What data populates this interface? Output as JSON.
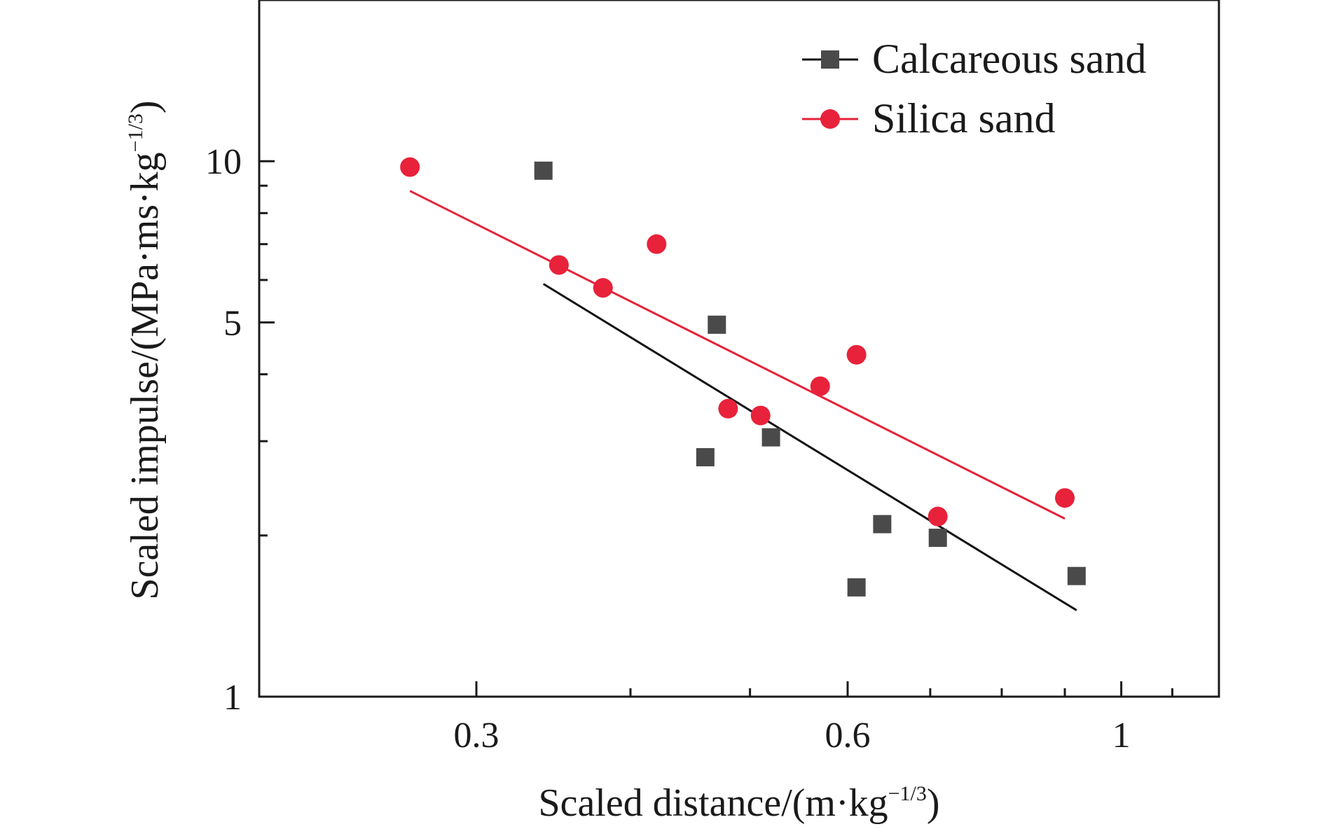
{
  "chart_data": {
    "type": "scatter",
    "x_scale": "log",
    "y_scale": "log",
    "xlim": [
      0.2,
      1.2
    ],
    "ylim": [
      1,
      20
    ],
    "x_ticks": [
      {
        "value": 0.3,
        "label": "0.3"
      },
      {
        "value": 0.6,
        "label": "0.6"
      },
      {
        "value": 1,
        "label": "1"
      }
    ],
    "y_ticks": [
      {
        "value": 1,
        "label": "1"
      },
      {
        "value": 5,
        "label": "5"
      },
      {
        "value": 10,
        "label": "10"
      }
    ],
    "xlabel": "Scaled distance/(m·kg",
    "xlabel_sup": "−1/3",
    "xlabel_end": ")",
    "ylabel": "Scaled impulse/(MPa·ms·kg",
    "ylabel_sup": "−1/3",
    "ylabel_end": ")",
    "legend_position": "top-right",
    "grid": false,
    "series": [
      {
        "name": "Calcareous sand",
        "marker": "square",
        "color": "#4a4a4a",
        "line_color": "#111111",
        "points": [
          {
            "x": 0.34,
            "y": 9.6
          },
          {
            "x": 0.46,
            "y": 2.8
          },
          {
            "x": 0.47,
            "y": 4.95
          },
          {
            "x": 0.52,
            "y": 3.05
          },
          {
            "x": 0.61,
            "y": 1.6
          },
          {
            "x": 0.64,
            "y": 2.1
          },
          {
            "x": 0.71,
            "y": 1.98
          },
          {
            "x": 0.92,
            "y": 1.68
          }
        ],
        "fit": {
          "x": [
            0.34,
            0.92
          ],
          "y": [
            5.9,
            1.45
          ]
        }
      },
      {
        "name": "Silica sand",
        "marker": "circle",
        "color": "#e8223a",
        "line_color": "#e8223a",
        "points": [
          {
            "x": 0.265,
            "y": 9.75
          },
          {
            "x": 0.35,
            "y": 6.4
          },
          {
            "x": 0.38,
            "y": 5.8
          },
          {
            "x": 0.42,
            "y": 7.0
          },
          {
            "x": 0.48,
            "y": 3.45
          },
          {
            "x": 0.51,
            "y": 3.35
          },
          {
            "x": 0.57,
            "y": 3.8
          },
          {
            "x": 0.61,
            "y": 4.35
          },
          {
            "x": 0.71,
            "y": 2.17
          },
          {
            "x": 0.9,
            "y": 2.35
          }
        ],
        "fit": {
          "x": [
            0.265,
            0.9
          ],
          "y": [
            8.8,
            2.15
          ]
        }
      }
    ]
  }
}
